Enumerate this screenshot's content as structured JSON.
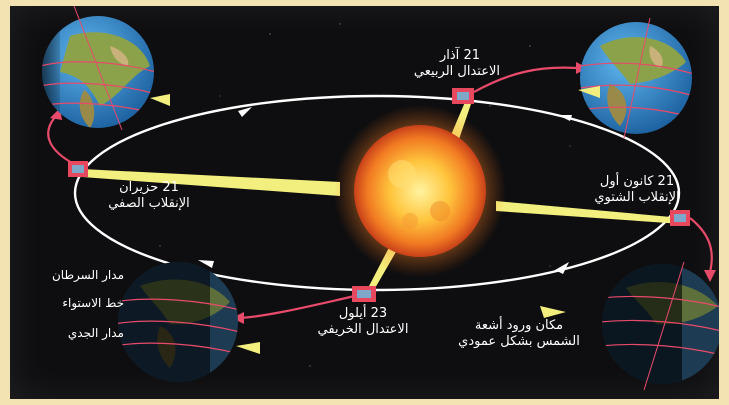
{
  "colors": {
    "frame": "#f4e3b2",
    "background": "#0e0e10",
    "orbit": "#ffffff",
    "sun_core": "#ffd25a",
    "sun_edge": "#e8581a",
    "sunray": "#f5f08a",
    "season_arrow": "#e84a6a",
    "marker": "#e8485e",
    "ocean": "#2f8fd6",
    "land": "#8ba24b"
  },
  "events": {
    "spring": {
      "date": "21 آذار",
      "name": "الاعتدال الربيعي"
    },
    "summer": {
      "date": "21 حزيران",
      "name": "الإنقلاب الصفي"
    },
    "winter": {
      "date": "21 كانون أول",
      "name": "الإنقلاب الشتوي"
    },
    "autumn": {
      "date": "23 أيلول",
      "name": "الاعتدال الخريفي"
    }
  },
  "earth_lines": {
    "cancer": "مدار السرطان",
    "equator": "خط الاستواء",
    "capricorn": "مدار الجدي"
  },
  "vertical_rays": {
    "line1": "مكان ورود أشعة",
    "line2": "الشمس بشكل عمودي"
  },
  "icons": {
    "sun": "sun-icon",
    "earth": "earth-globe-icon",
    "arrow": "orbit-arrow-icon"
  }
}
